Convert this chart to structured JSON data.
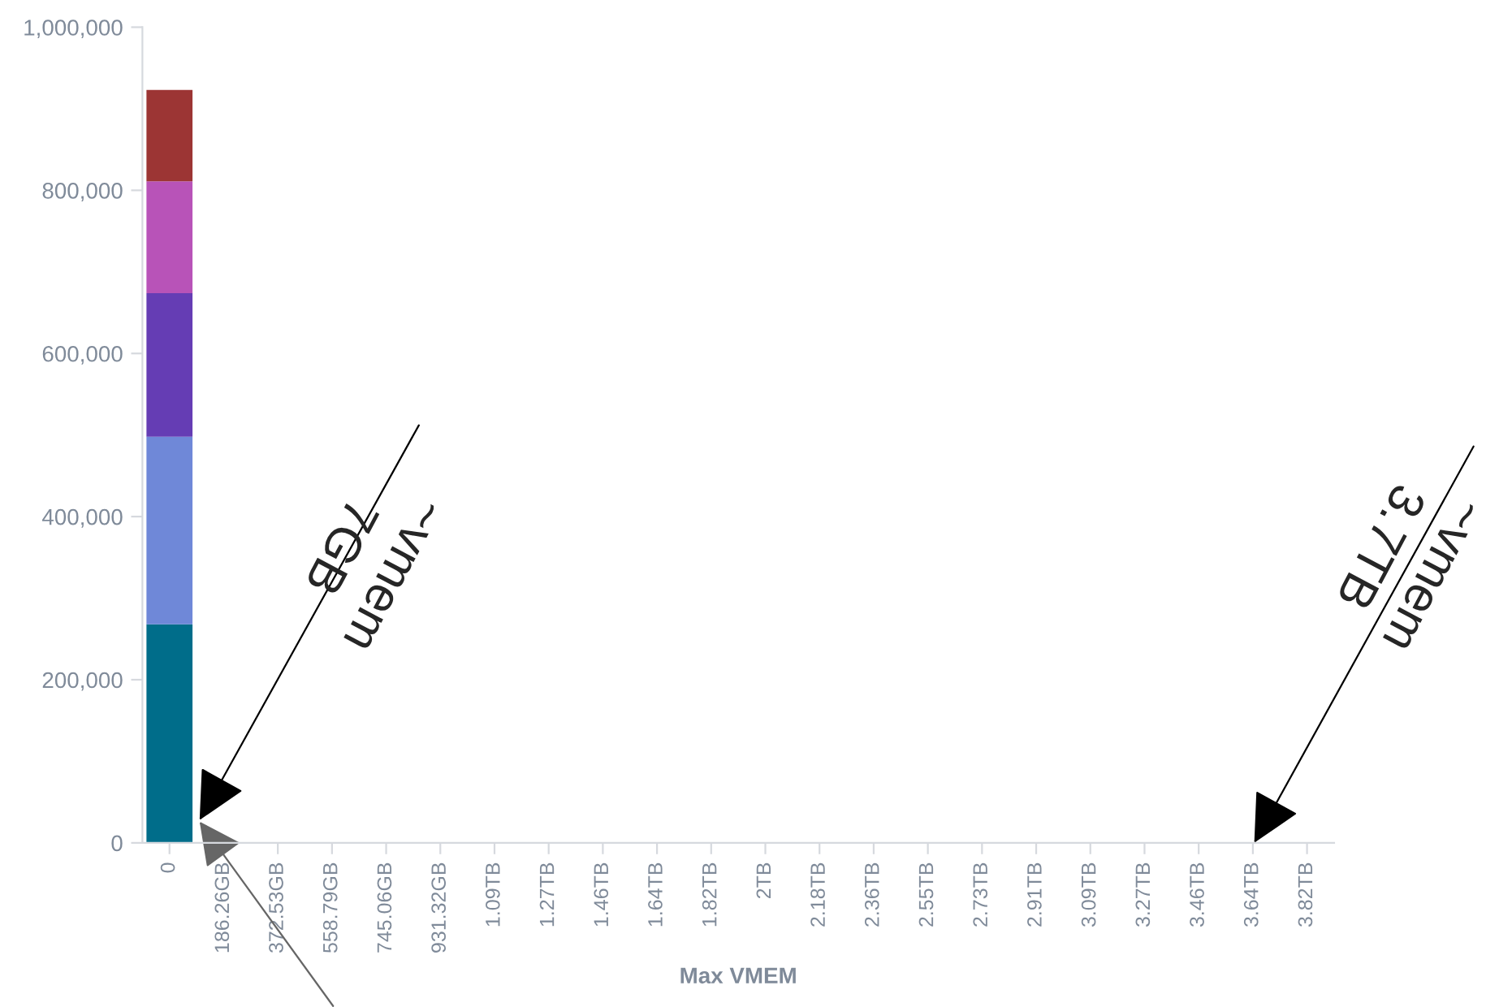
{
  "chart_data": {
    "type": "bar",
    "stacked": true,
    "xlabel": "Max VMEM",
    "categories": [
      "0",
      "186.26GB",
      "372.53GB",
      "558.79GB",
      "745.06GB",
      "931.32GB",
      "1.09TB",
      "1.27TB",
      "1.46TB",
      "1.64TB",
      "1.82TB",
      "2TB",
      "2.18TB",
      "2.36TB",
      "2.55TB",
      "2.73TB",
      "2.91TB",
      "3.09TB",
      "3.27TB",
      "3.46TB",
      "3.64TB",
      "3.82TB"
    ],
    "series": [
      {
        "color": "#006d8a",
        "values": [
          268000,
          null,
          null,
          null,
          null,
          null,
          null,
          null,
          null,
          null,
          null,
          null,
          null,
          null,
          null,
          null,
          null,
          null,
          null,
          null,
          null,
          null
        ]
      },
      {
        "color": "#6f88d8",
        "values": [
          230000,
          null,
          null,
          null,
          null,
          null,
          null,
          null,
          null,
          null,
          null,
          null,
          null,
          null,
          null,
          null,
          null,
          null,
          null,
          null,
          null,
          null
        ]
      },
      {
        "color": "#653db4",
        "values": [
          176000,
          null,
          null,
          null,
          null,
          null,
          null,
          null,
          null,
          null,
          null,
          null,
          null,
          null,
          null,
          null,
          null,
          null,
          null,
          null,
          null,
          null
        ]
      },
      {
        "color": "#b853b8",
        "values": [
          137000,
          null,
          null,
          null,
          null,
          null,
          null,
          null,
          null,
          null,
          null,
          null,
          null,
          null,
          null,
          null,
          null,
          null,
          null,
          null,
          null,
          null
        ]
      },
      {
        "color": "#9c3534",
        "values": [
          112000,
          null,
          null,
          null,
          null,
          null,
          null,
          null,
          null,
          null,
          null,
          null,
          null,
          null,
          null,
          null,
          null,
          null,
          null,
          null,
          null,
          null
        ]
      }
    ],
    "ylim": [
      0,
      1000000
    ],
    "yticks": [
      {
        "value": 0,
        "label": "0"
      },
      {
        "value": 200000,
        "label": "200,000"
      },
      {
        "value": 400000,
        "label": "400,000"
      },
      {
        "value": 600000,
        "label": "600,000"
      },
      {
        "value": 800000,
        "label": "800,000"
      },
      {
        "value": 1000000,
        "label": "1,000,000"
      }
    ],
    "grid": false,
    "annotations": [
      "~vmem\n7GB",
      "~vmem\n3.7TB"
    ]
  }
}
